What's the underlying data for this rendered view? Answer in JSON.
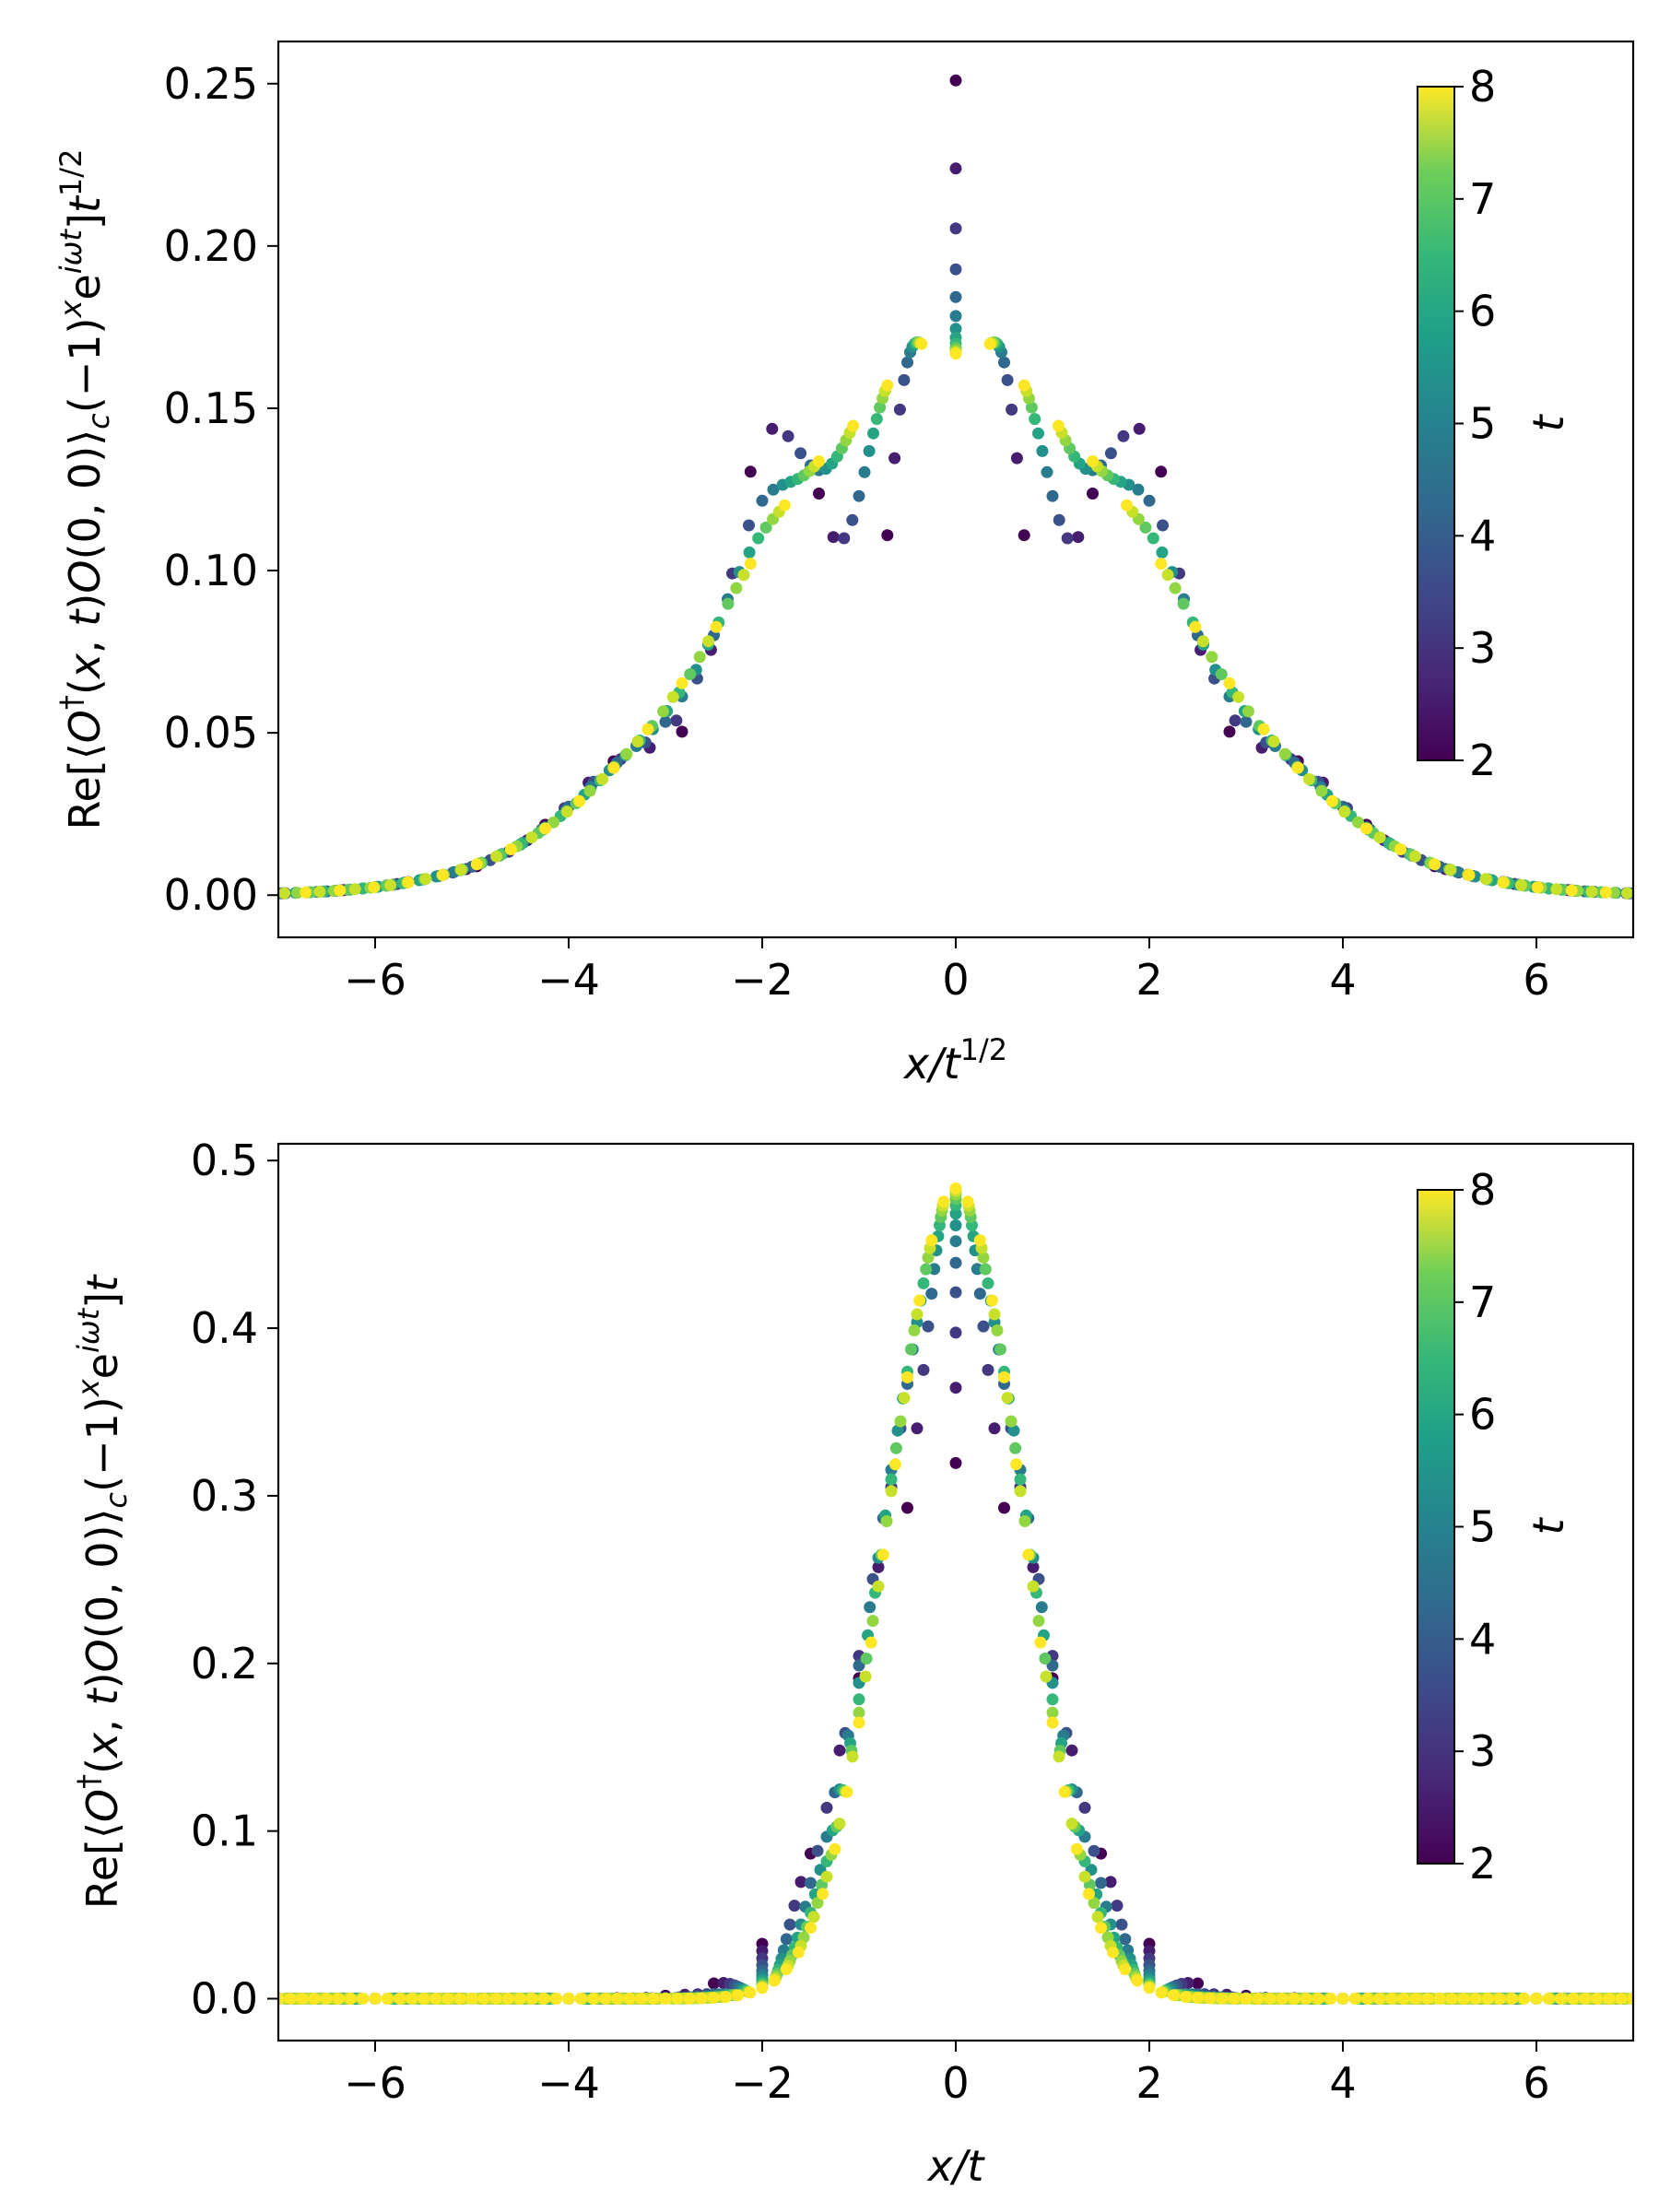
{
  "chart_data": [
    {
      "type": "scatter",
      "id": "top",
      "scaling": "diffusive",
      "xlabel": "x/t^{1/2}",
      "xlabel_parts": [
        "x/t",
        "1/2"
      ],
      "ylabel": "Re[⟨O†(x,t)O(0,0)⟩c(−1)^x e^{iωt}] t^{1/2}",
      "ylabel_parts": {
        "pre": "Re[⟨",
        "O": "O",
        "dagger": "†",
        "mid1": "(",
        "x": "x",
        "comma1": ", ",
        "t": "t",
        "mid2": ")",
        "O2": "O",
        "mid3": "(0, 0)⟩",
        "c": "c",
        "mid4": "(−1)",
        "xsup": "x",
        "e": "e",
        "iwt": "iωt",
        "close": "]",
        "t2": "t",
        "tsup": "1/2"
      },
      "xlim": [
        -7,
        7
      ],
      "ylim": [
        -0.013,
        0.263
      ],
      "xticks": [
        -6,
        -4,
        -2,
        0,
        2,
        4,
        6
      ],
      "xtick_labels": [
        "−6",
        "−4",
        "−2",
        "0",
        "2",
        "4",
        "6"
      ],
      "yticks": [
        0.0,
        0.05,
        0.1,
        0.15,
        0.2,
        0.25
      ],
      "ytick_labels": [
        "0.00",
        "0.05",
        "0.10",
        "0.15",
        "0.20",
        "0.25"
      ],
      "series_times": [
        2,
        2.5,
        3,
        3.5,
        4,
        4.5,
        5,
        5.5,
        6,
        6.5,
        7,
        7.5,
        8
      ],
      "model": "diffusive",
      "colorbar": {
        "label": "t",
        "range": [
          2,
          8
        ],
        "ticks": [
          2,
          3,
          4,
          5,
          6,
          7,
          8
        ],
        "tick_labels": [
          "2",
          "3",
          "4",
          "5",
          "6",
          "7",
          "8"
        ],
        "colormap": "viridis"
      }
    },
    {
      "type": "scatter",
      "id": "bottom",
      "scaling": "ballistic",
      "xlabel": "x/t",
      "xlabel_parts": [
        "x/t",
        ""
      ],
      "ylabel": "Re[⟨O†(x,t)O(0,0)⟩c(−1)^x e^{iωt}] t",
      "ylabel_parts": {
        "pre": "Re[⟨",
        "O": "O",
        "dagger": "†",
        "mid1": "(",
        "x": "x",
        "comma1": ", ",
        "t": "t",
        "mid2": ")",
        "O2": "O",
        "mid3": "(0, 0)⟩",
        "c": "c",
        "mid4": "(−1)",
        "xsup": "x",
        "e": "e",
        "iwt": "iωt",
        "close": "]",
        "t2": "t",
        "tsup": ""
      },
      "xlim": [
        -7,
        7
      ],
      "ylim": [
        -0.025,
        0.51
      ],
      "xticks": [
        -6,
        -4,
        -2,
        0,
        2,
        4,
        6
      ],
      "xtick_labels": [
        "−6",
        "−4",
        "−2",
        "0",
        "2",
        "4",
        "6"
      ],
      "yticks": [
        0.0,
        0.1,
        0.2,
        0.3,
        0.4,
        0.5
      ],
      "ytick_labels": [
        "0.0",
        "0.1",
        "0.2",
        "0.3",
        "0.4",
        "0.5"
      ],
      "series_times": [
        2,
        2.5,
        3,
        3.5,
        4,
        4.5,
        5,
        5.5,
        6,
        6.5,
        7,
        7.5,
        8
      ],
      "model": "ballistic",
      "colorbar": {
        "label": "t",
        "range": [
          2,
          8
        ],
        "ticks": [
          2,
          3,
          4,
          5,
          6,
          7,
          8
        ],
        "tick_labels": [
          "2",
          "3",
          "4",
          "5",
          "6",
          "7",
          "8"
        ],
        "colormap": "viridis"
      }
    }
  ]
}
